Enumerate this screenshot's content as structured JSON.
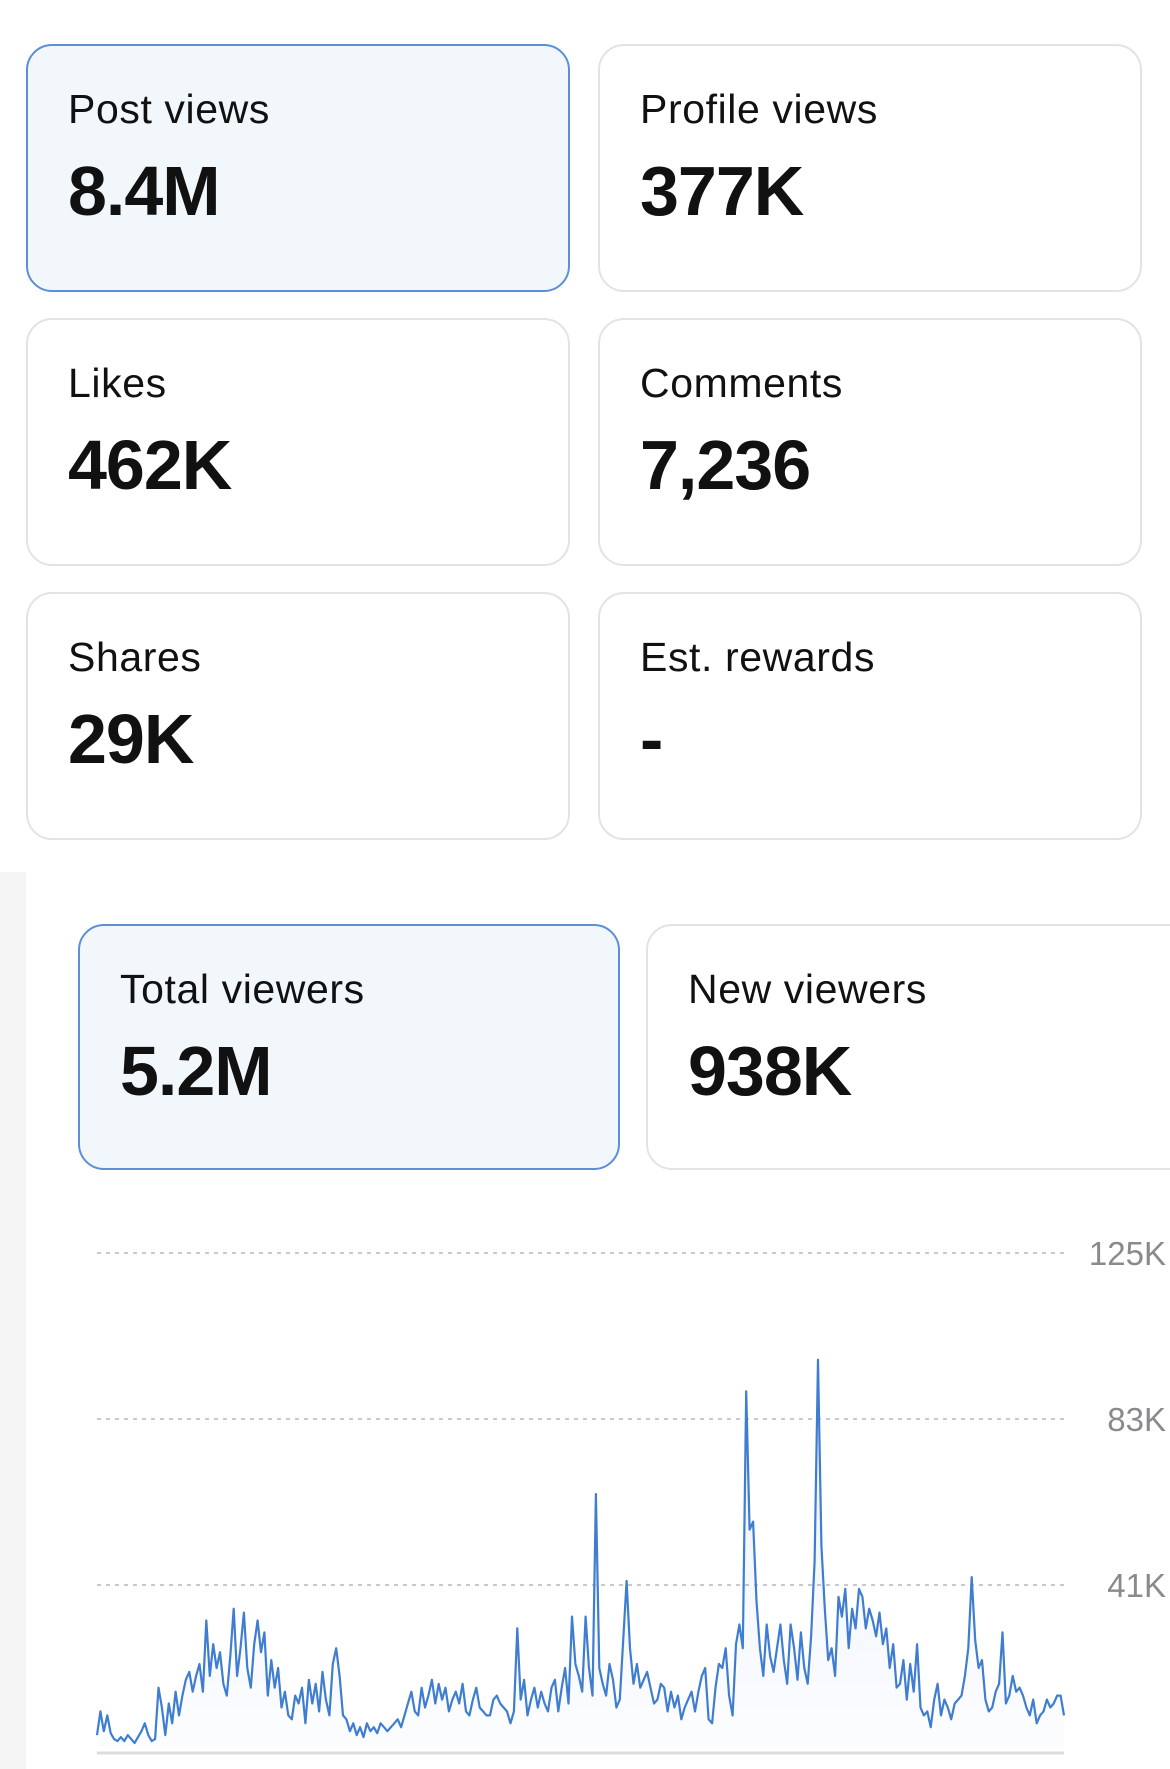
{
  "metrics": [
    {
      "label": "Post views",
      "value": "8.4M",
      "selected": true
    },
    {
      "label": "Profile views",
      "value": "377K",
      "selected": false
    },
    {
      "label": "Likes",
      "value": "462K",
      "selected": false
    },
    {
      "label": "Comments",
      "value": "7,236",
      "selected": false
    },
    {
      "label": "Shares",
      "value": "29K",
      "selected": false
    },
    {
      "label": "Est. rewards",
      "value": "-",
      "selected": false
    }
  ],
  "viewer_tabs": [
    {
      "label": "Total viewers",
      "value": "5.2M",
      "selected": true
    },
    {
      "label": "New viewers",
      "value": "938K",
      "selected": false
    }
  ],
  "colors": {
    "accent": "#3f7dd0",
    "selected_bg": "#f2f7fc",
    "selected_border": "#5b8fd6",
    "card_border": "#e3e3e7"
  },
  "chart_data": {
    "type": "area",
    "title": "",
    "xlabel": "",
    "ylabel": "",
    "ylim": [
      0,
      125000
    ],
    "y_ticks": [
      41000,
      83000,
      125000
    ],
    "y_tick_labels": [
      "41K",
      "83K",
      "125K"
    ],
    "grid": true,
    "series": [
      {
        "values": [
          3000,
          9000,
          4000,
          8000,
          3500,
          2000,
          1500,
          2500,
          1500,
          3000,
          2000,
          1000,
          2500,
          4000,
          6000,
          3000,
          1500,
          2000,
          15000,
          10000,
          3000,
          11000,
          6000,
          14000,
          8000,
          13000,
          17000,
          19000,
          14000,
          18000,
          21000,
          14000,
          32000,
          18000,
          26000,
          20000,
          24000,
          16000,
          13000,
          23000,
          35000,
          18000,
          25000,
          34000,
          20000,
          15000,
          26000,
          32000,
          24000,
          29000,
          13000,
          22000,
          15000,
          20000,
          10000,
          14000,
          8000,
          7000,
          13000,
          11000,
          15000,
          6000,
          17000,
          11000,
          16000,
          9000,
          19000,
          12000,
          8000,
          21000,
          25000,
          18000,
          8000,
          7000,
          4000,
          6000,
          3000,
          5000,
          2500,
          6000,
          4000,
          5000,
          3500,
          6000,
          5000,
          4000,
          5000,
          6000,
          7000,
          5000,
          8000,
          11000,
          14000,
          9000,
          8000,
          15000,
          10000,
          13000,
          17000,
          11000,
          16000,
          12000,
          15000,
          9000,
          12000,
          14000,
          11000,
          16000,
          9000,
          8000,
          12000,
          15000,
          10000,
          9000,
          8000,
          8000,
          12000,
          13000,
          11000,
          10000,
          9000,
          6000,
          9000,
          30000,
          12000,
          17000,
          8000,
          12000,
          15000,
          10000,
          14000,
          11000,
          9000,
          15000,
          17000,
          9000,
          15000,
          20000,
          11000,
          33000,
          21000,
          18000,
          14000,
          33000,
          20000,
          13000,
          64000,
          20000,
          16000,
          13000,
          21000,
          17000,
          10000,
          12000,
          27000,
          42000,
          25000,
          16000,
          21000,
          15000,
          17000,
          19000,
          15000,
          11000,
          12000,
          16000,
          15000,
          9000,
          14000,
          10000,
          13000,
          7000,
          10000,
          12000,
          14000,
          9000,
          14000,
          18000,
          20000,
          7000,
          6000,
          15000,
          21000,
          20000,
          25000,
          13000,
          8000,
          26000,
          31000,
          25000,
          90000,
          55000,
          57000,
          37000,
          25000,
          18000,
          31000,
          23000,
          19000,
          25000,
          31000,
          22000,
          16000,
          31000,
          25000,
          17000,
          29000,
          20000,
          16000,
          28000,
          47000,
          98000,
          51000,
          35000,
          22000,
          25000,
          18000,
          38000,
          33000,
          40000,
          25000,
          35000,
          30000,
          40000,
          38000,
          30000,
          35000,
          32000,
          28000,
          34000,
          26000,
          30000,
          20000,
          26000,
          15000,
          16000,
          22000,
          12000,
          21000,
          14000,
          26000,
          10000,
          8000,
          9000,
          5000,
          12000,
          16000,
          8000,
          12000,
          10000,
          7000,
          11000,
          12000,
          13000,
          18000,
          25000,
          43000,
          27000,
          20000,
          22000,
          12000,
          9000,
          10000,
          14000,
          16000,
          29000,
          11000,
          13000,
          18000,
          14000,
          15000,
          13000,
          10000,
          8000,
          12000,
          6000,
          8000,
          9000,
          12000,
          10000,
          11000,
          13000,
          13000,
          8000
        ]
      }
    ]
  }
}
